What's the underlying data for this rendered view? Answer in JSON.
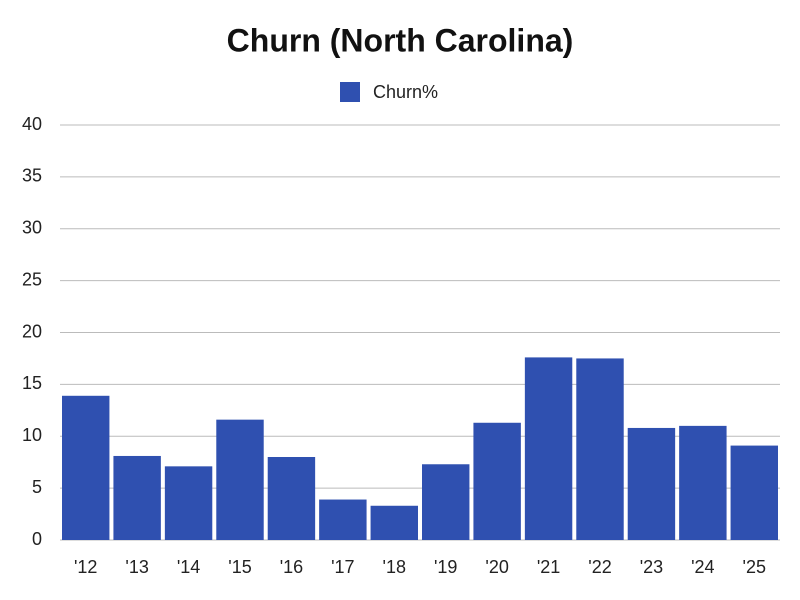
{
  "chart_data": {
    "type": "bar",
    "title": "Churn (North Carolina)",
    "categories": [
      "'12",
      "'13",
      "'14",
      "'15",
      "'16",
      "'17",
      "'18",
      "'19",
      "'20",
      "'21",
      "'22",
      "'23",
      "'24",
      "'25"
    ],
    "series": [
      {
        "name": "Churn%",
        "color": "#2f50b0",
        "values": [
          13.9,
          8.1,
          7.1,
          11.6,
          8.0,
          3.9,
          3.3,
          7.3,
          11.3,
          17.6,
          17.5,
          10.8,
          11.0,
          9.1
        ]
      }
    ],
    "ylim": [
      0,
      40
    ],
    "yticks": [
      0,
      5,
      10,
      15,
      20,
      25,
      30,
      35,
      40
    ],
    "grid": true,
    "legend": "top"
  }
}
